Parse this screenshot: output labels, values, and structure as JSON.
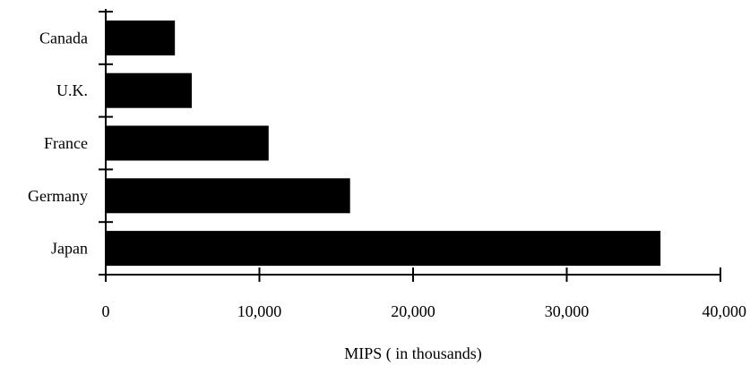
{
  "chart_data": {
    "type": "bar",
    "orientation": "horizontal",
    "categories": [
      "Canada",
      "U.K.",
      "France",
      "Germany",
      "Japan"
    ],
    "values": [
      4500,
      5600,
      10600,
      15900,
      36100
    ],
    "title": "",
    "xlabel": "MIPS ( in thousands)",
    "ylabel": "",
    "xlim": [
      0,
      40000
    ],
    "x_ticks": [
      0,
      10000,
      20000,
      30000,
      40000
    ],
    "x_tick_labels": [
      "0",
      "10,000",
      "20,000",
      "30,000",
      "40,000"
    ],
    "grid": false,
    "legend": "none",
    "bar_color": "#000000"
  }
}
